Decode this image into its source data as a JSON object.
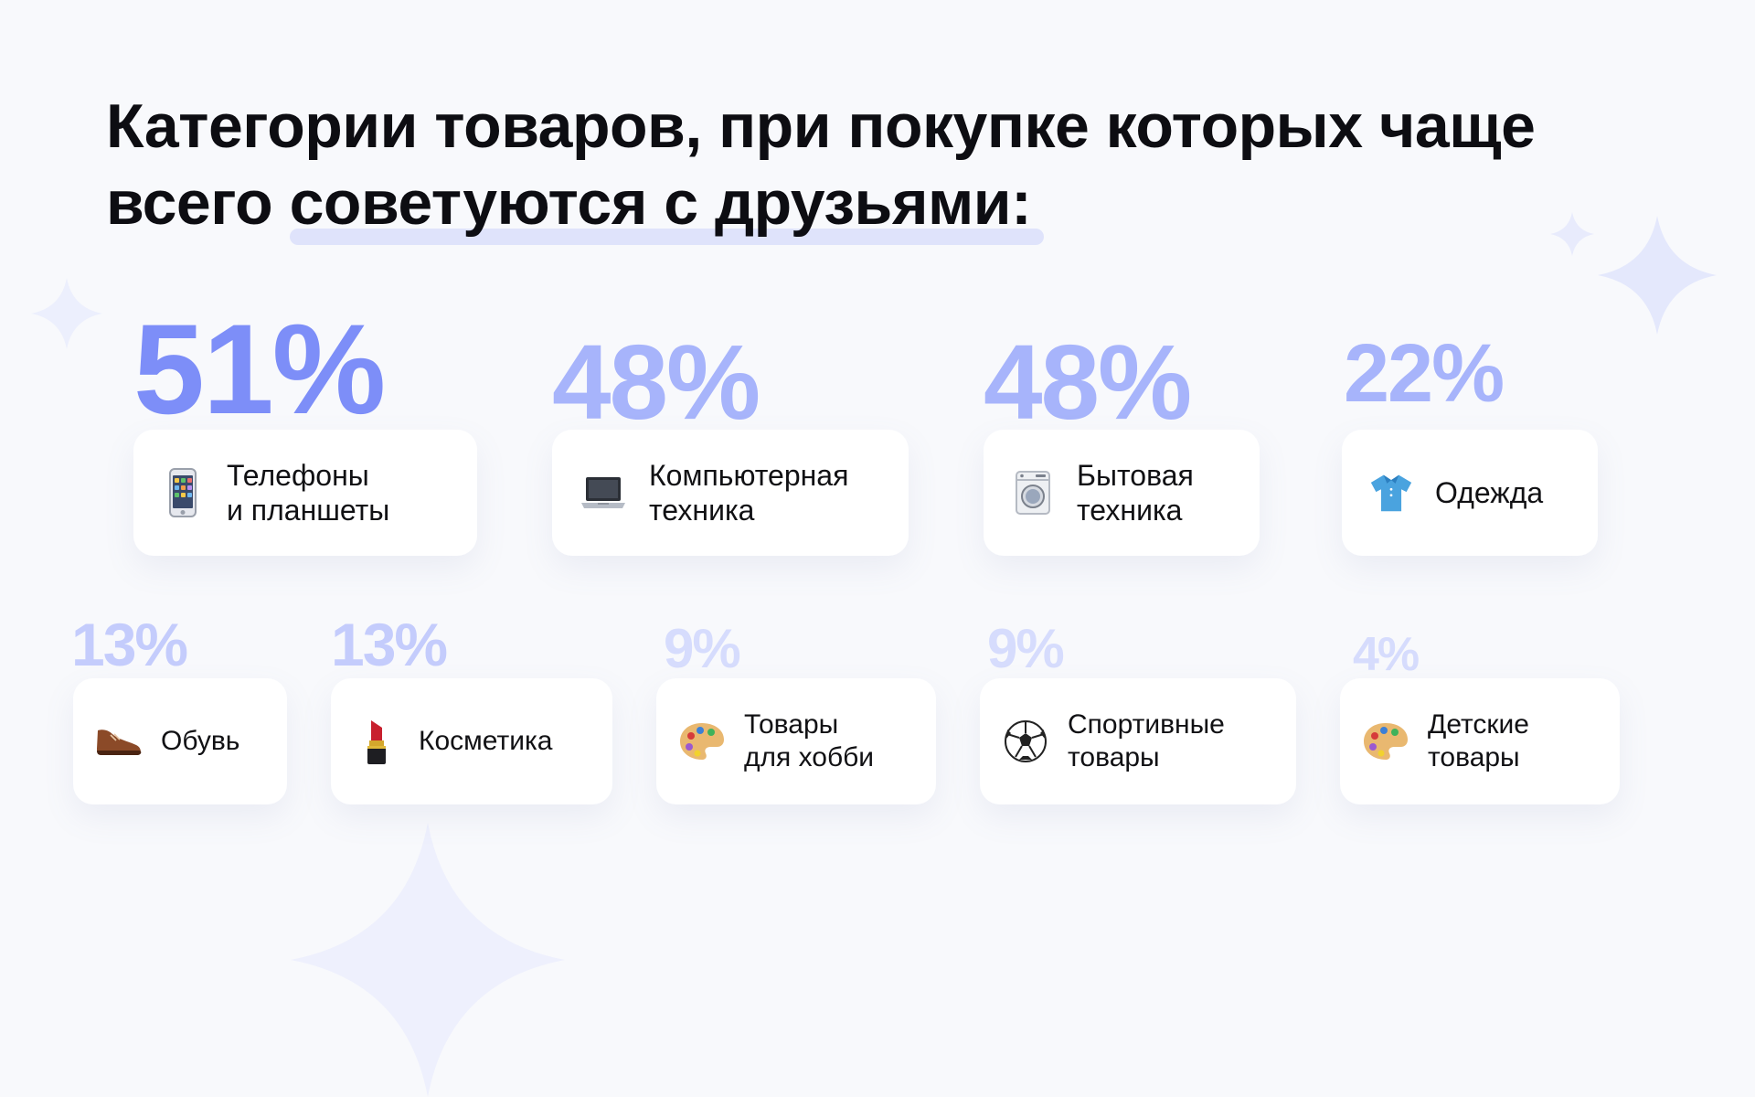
{
  "title": {
    "line1": "Категории товаров, при покупке которых чаще",
    "line2_plain": "всего ",
    "line2_highlight": "советуются с друзьями:"
  },
  "accent_colors": {
    "primary": "#7d8ef8",
    "mid": "#a7b4fb",
    "light": "#c4ccfc",
    "lightest": "#d6dcfd"
  },
  "stats": [
    {
      "percent": "51%",
      "label_line1": "Телефоны",
      "label_line2": "и планшеты",
      "icon": "mobile-phone-icon"
    },
    {
      "percent": "48%",
      "label_line1": "Компьютерная",
      "label_line2": "техника",
      "icon": "laptop-icon"
    },
    {
      "percent": "48%",
      "label_line1": "Бытовая",
      "label_line2": "техника",
      "icon": "washing-machine-icon"
    },
    {
      "percent": "22%",
      "label_line1": "Одежда",
      "label_line2": "",
      "icon": "shirt-icon"
    },
    {
      "percent": "13%",
      "label_line1": "Обувь",
      "label_line2": "",
      "icon": "shoe-icon"
    },
    {
      "percent": "13%",
      "label_line1": "Косметика",
      "label_line2": "",
      "icon": "lipstick-icon"
    },
    {
      "percent": "9%",
      "label_line1": "Товары",
      "label_line2": "для хобби",
      "icon": "palette-icon"
    },
    {
      "percent": "9%",
      "label_line1": "Спортивные",
      "label_line2": "товары",
      "icon": "soccer-ball-icon"
    },
    {
      "percent": "4%",
      "label_line1": "Детские",
      "label_line2": "товары",
      "icon": "palette-icon"
    }
  ]
}
